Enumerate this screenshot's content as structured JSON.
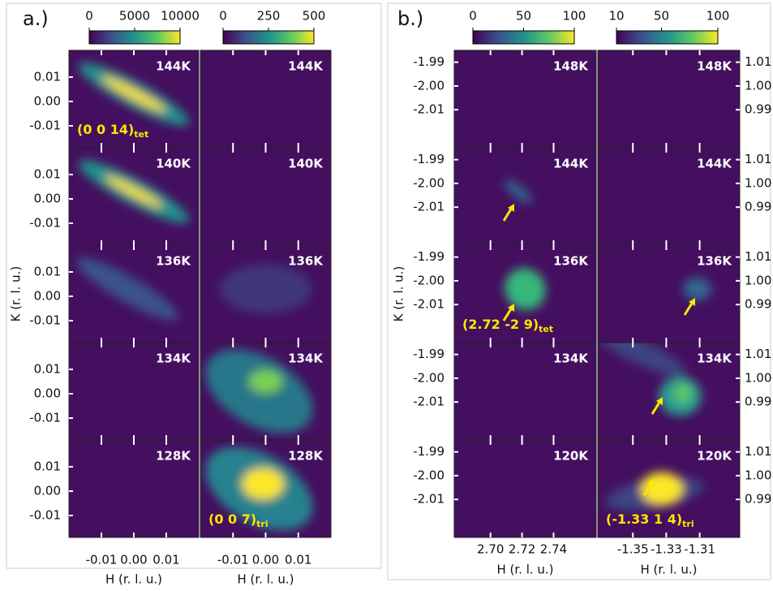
{
  "panels": [
    {
      "label": "a.)",
      "ylabel": "K (r. l. u.)",
      "colorbars": [
        {
          "ticks": [
            0,
            5000,
            10000
          ]
        },
        {
          "ticks": [
            0,
            250,
            500
          ]
        }
      ],
      "ylim": [
        -0.019,
        0.021
      ],
      "yticks": [
        0.01,
        {
          "value": 0,
          "label": "0.00"
        },
        -0.01
      ],
      "columns": [
        {
          "xlabel": "H (r. l. u.)",
          "xlim": [
            -0.02,
            0.02
          ],
          "xticks": [
            -0.01,
            {
              "value": 0,
              "label": "0.00"
            },
            0.01
          ],
          "temperatures": [
            "144K",
            "140K",
            "136K",
            "134K",
            "128K"
          ],
          "annotation": {
            "row": 0,
            "text": "(0 0 14)",
            "sub": "tet"
          }
        },
        {
          "xlabel": "H (r. l. u.)",
          "xlim": [
            -0.02,
            0.02
          ],
          "xticks": [
            -0.01,
            {
              "value": 0,
              "label": "0.00"
            },
            0.01
          ],
          "temperatures": [
            "144K",
            "140K",
            "136K",
            "134K",
            "128K"
          ],
          "annotation": {
            "row": 4,
            "text": "(0 0 7)",
            "sub": "tri"
          }
        }
      ]
    },
    {
      "label": "b.)",
      "ylabel": "K (r. l. u.)",
      "colorbars": [
        {
          "ticks": [
            0,
            50,
            100
          ]
        },
        {
          "ticks": [
            10,
            50,
            100
          ]
        }
      ],
      "ylim": [
        -2.026,
        -1.985
      ],
      "yticks": [
        -1.99,
        {
          "value": -2,
          "label": "-2.00"
        },
        -2.01
      ],
      "y2lim": [
        0.974,
        1.015
      ],
      "y2ticks": [
        1.01,
        {
          "value": 1,
          "label": "1.00"
        },
        0.99
      ],
      "columns": [
        {
          "xlabel": "H (r. l. u.)",
          "xlim": [
            2.677,
            2.767
          ],
          "xticks": [
            {
              "value": 2.7,
              "label": "2.70"
            },
            2.72,
            2.74
          ],
          "temperatures": [
            "148K",
            "144K",
            "136K",
            "134K",
            "120K"
          ],
          "annotation": {
            "row": 2,
            "text": "(2.72 -2 9)",
            "sub": "tet"
          }
        },
        {
          "xlabel": "H (r. l. u.)",
          "xlim": [
            -1.371,
            -1.286
          ],
          "xticks": [
            -1.35,
            -1.33,
            -1.31
          ],
          "temperatures": [
            "148K",
            "144K",
            "136K",
            "134K",
            "120K"
          ],
          "annotation": {
            "row": 4,
            "text": "(-1.33 1 4)",
            "sub": "tri"
          }
        }
      ]
    }
  ]
}
